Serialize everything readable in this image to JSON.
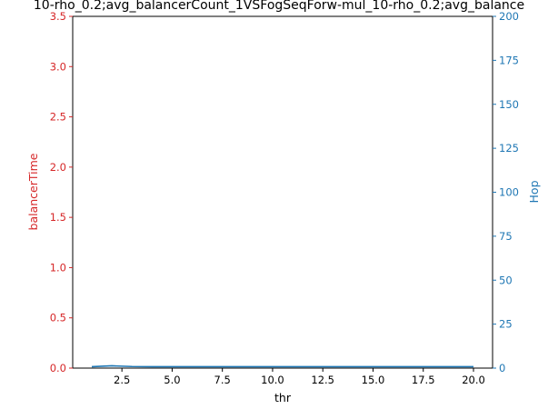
{
  "chart_data": {
    "type": "line",
    "title": "10-rho_0.2;avg_balancerCount_1VSFogSeqForw-mul_10-rho_0.2;avg_balance",
    "xlabel": "thr",
    "ylabel_left": "balancerTime",
    "ylabel_right": "Hop",
    "xlim": [
      0.05,
      20.95
    ],
    "ylim_left": [
      0,
      3.5
    ],
    "ylim_right": [
      0,
      200
    ],
    "x_ticks": [
      2.5,
      5.0,
      7.5,
      10.0,
      12.5,
      15.0,
      17.5,
      20.0
    ],
    "x_tick_labels": [
      "2.5",
      "5.0",
      "7.5",
      "10.0",
      "12.5",
      "15.0",
      "17.5",
      "20.0"
    ],
    "y_left_ticks": [
      0,
      0.5,
      1.0,
      1.5,
      2.0,
      2.5,
      3.0,
      3.5
    ],
    "y_left_tick_labels": [
      "0.0",
      "0.5",
      "1.0",
      "1.5",
      "2.0",
      "2.5",
      "3.0",
      "3.5"
    ],
    "y_right_ticks": [
      0,
      25,
      50,
      75,
      100,
      125,
      150,
      175,
      200
    ],
    "y_right_tick_labels": [
      "0",
      "25",
      "50",
      "75",
      "100",
      "125",
      "150",
      "175",
      "200"
    ],
    "grid": false,
    "colors": {
      "left_axis": "#d62728",
      "right_axis": "#1f77b4",
      "line": "#1f77b4"
    },
    "series": [
      {
        "axis": "right",
        "x": [
          1,
          2,
          2.5,
          3,
          4,
          5,
          6,
          7,
          8,
          9,
          10,
          11,
          12,
          13,
          14,
          15,
          16,
          17,
          18,
          19,
          20
        ],
        "values": [
          0.8,
          1.3,
          1.1,
          0.9,
          0.8,
          0.8,
          0.8,
          0.8,
          0.8,
          0.8,
          0.8,
          0.8,
          0.8,
          0.8,
          0.8,
          0.8,
          0.8,
          0.8,
          0.8,
          0.8,
          0.8
        ]
      }
    ]
  }
}
